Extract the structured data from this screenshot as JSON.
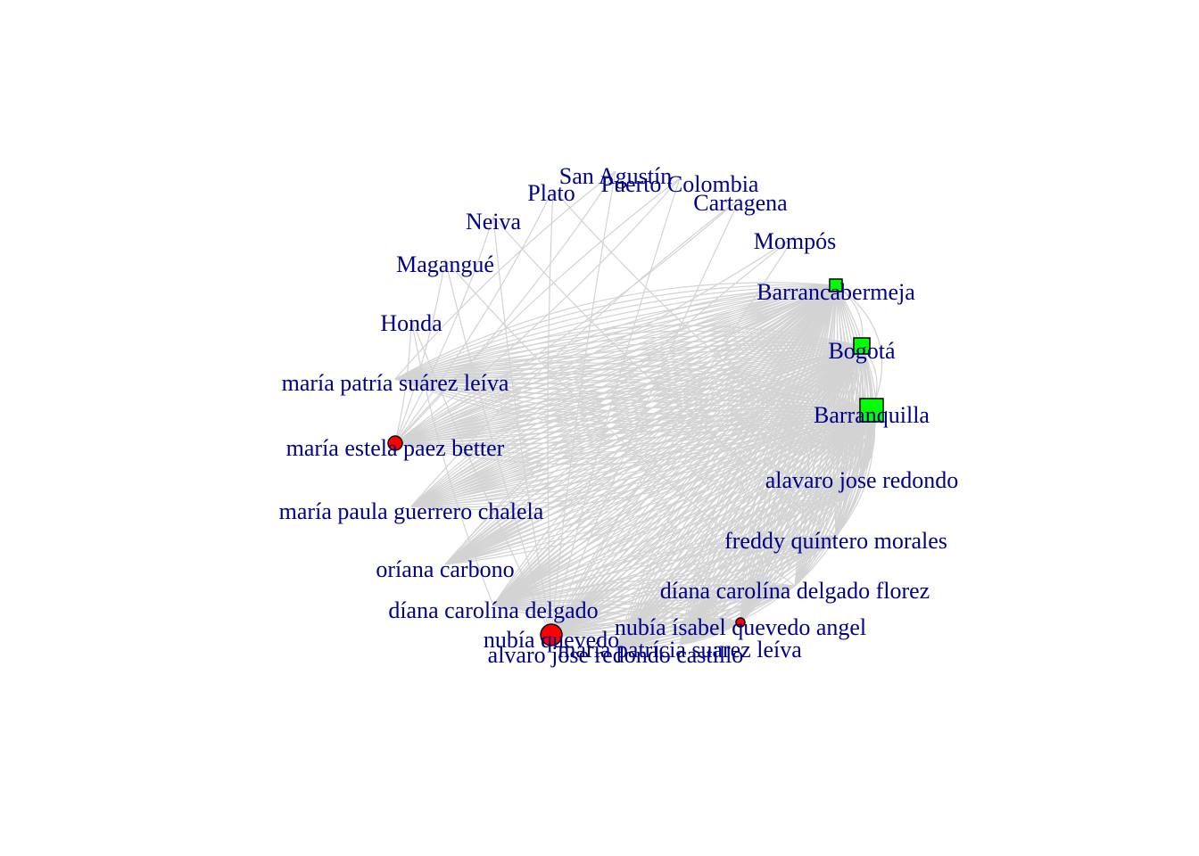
{
  "graph": {
    "colors": {
      "edge": "#d3d3d3",
      "label": "#00008B",
      "person_node": "#ff0000",
      "city_node": "#00ff00",
      "node_border": "#000000"
    },
    "nodes": [
      {
        "id": "san-agustin",
        "label": "San Agustín",
        "kind": "city-label"
      },
      {
        "id": "puerto-colombia",
        "label": "Puerto Colombia",
        "kind": "city-label"
      },
      {
        "id": "plato",
        "label": "Plato",
        "kind": "city-label"
      },
      {
        "id": "cartagena",
        "label": "Cartagena",
        "kind": "city-label"
      },
      {
        "id": "neiva",
        "label": "Neiva",
        "kind": "city-label"
      },
      {
        "id": "mompos",
        "label": "Mompós",
        "kind": "city-label"
      },
      {
        "id": "magangue",
        "label": "Magangué",
        "kind": "city-label"
      },
      {
        "id": "barrancabermeja",
        "label": "Barrancabermeja",
        "kind": "city"
      },
      {
        "id": "honda",
        "label": "Honda",
        "kind": "city-label"
      },
      {
        "id": "bogota",
        "label": "Bogotá",
        "kind": "city"
      },
      {
        "id": "maria-patria",
        "label": "maría patría suárez leíva",
        "kind": "person-label"
      },
      {
        "id": "barranquilla",
        "label": "Barranquilla",
        "kind": "city"
      },
      {
        "id": "maria-estela",
        "label": "maría estela paez better",
        "kind": "person"
      },
      {
        "id": "alavaro",
        "label": "alavaro  jose redondo",
        "kind": "person-label"
      },
      {
        "id": "maria-paula",
        "label": "maría paula guerrero chalela",
        "kind": "person-label"
      },
      {
        "id": "freddy",
        "label": "freddy quíntero morales",
        "kind": "person-label"
      },
      {
        "id": "oriana",
        "label": "oríana carbono",
        "kind": "person-label"
      },
      {
        "id": "diana-florez",
        "label": "díana carolína delgado florez",
        "kind": "person-label"
      },
      {
        "id": "diana-delgado",
        "label": "díana carolína delgado",
        "kind": "person-label"
      },
      {
        "id": "nubia-isabel",
        "label": "nubía ísabel quevedo angel",
        "kind": "person"
      },
      {
        "id": "nubia-quevedo",
        "label": "nubía quevedo",
        "kind": "person"
      },
      {
        "id": "maria-patricia",
        "label": "maría patrícia suarez leíva",
        "kind": "person-label"
      },
      {
        "id": "alvaro-castillo",
        "label": "alvaro jose redondo castillo",
        "kind": "person-label"
      }
    ]
  }
}
